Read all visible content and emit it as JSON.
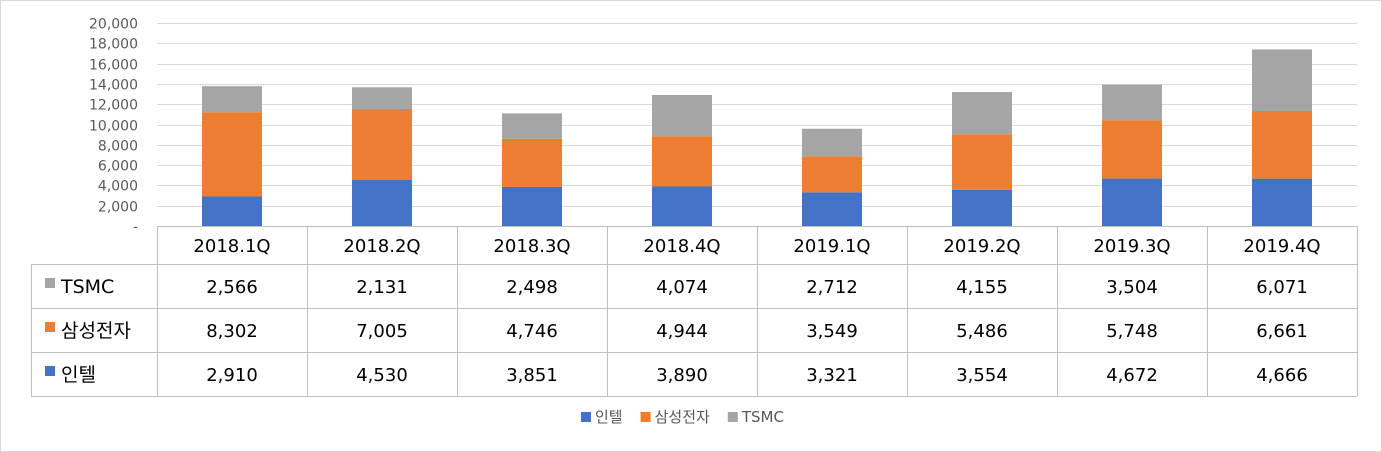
{
  "chart_data": {
    "type": "bar",
    "stacked": true,
    "categories": [
      "2018.1Q",
      "2018.2Q",
      "2018.3Q",
      "2018.4Q",
      "2019.1Q",
      "2019.2Q",
      "2019.3Q",
      "2019.4Q"
    ],
    "series": [
      {
        "name": "인텔",
        "color": "#4472C4",
        "values": [
          2910,
          4530,
          3851,
          3890,
          3321,
          3554,
          4672,
          4666
        ],
        "labels": [
          "2,910",
          "4,530",
          "3,851",
          "3,890",
          "3,321",
          "3,554",
          "4,672",
          "4,666"
        ]
      },
      {
        "name": "삼성전자",
        "color": "#ED7D31",
        "values": [
          8302,
          7005,
          4746,
          4944,
          3549,
          5486,
          5748,
          6661
        ],
        "labels": [
          "8,302",
          "7,005",
          "4,746",
          "4,944",
          "3,549",
          "5,486",
          "5,748",
          "6,661"
        ]
      },
      {
        "name": "TSMC",
        "color": "#A5A5A5",
        "values": [
          2566,
          2131,
          2498,
          4074,
          2712,
          4155,
          3504,
          6071
        ],
        "labels": [
          "2,566",
          "2,131",
          "2,498",
          "4,074",
          "2,712",
          "4,155",
          "3,504",
          "6,071"
        ]
      }
    ],
    "table_row_order": [
      "TSMC",
      "삼성전자",
      "인텔"
    ],
    "ylim": [
      0,
      20000
    ],
    "yticks": [
      0,
      2000,
      4000,
      6000,
      8000,
      10000,
      12000,
      14000,
      16000,
      18000,
      20000
    ],
    "ytick_labels": [
      "-",
      "2,000",
      "4,000",
      "6,000",
      "8,000",
      "10,000",
      "12,000",
      "14,000",
      "16,000",
      "18,000",
      "20,000"
    ],
    "grid": true,
    "data_table": true,
    "legend_position": "bottom",
    "title": "",
    "xlabel": "",
    "ylabel": ""
  }
}
